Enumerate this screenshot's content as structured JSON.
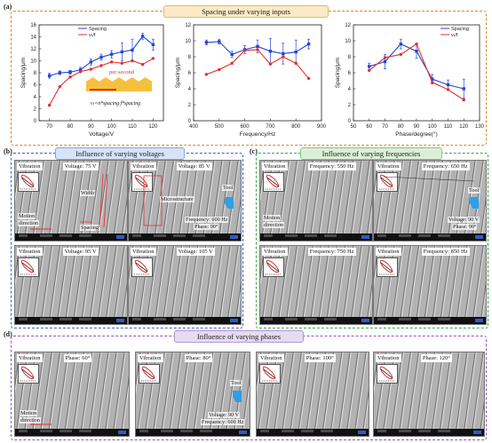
{
  "panel_a": {
    "label": "(a)",
    "title": "Spacing under varying inputs",
    "colors": {
      "border": "#d18a2e",
      "pill_bg": "#fbe9c6",
      "red": "#e23030",
      "blue": "#2347d6"
    },
    "annotations": {
      "per_second": "per second",
      "formula": "vₜ=n*spacing·f*spacing",
      "n_labels": [
        "1",
        "2",
        "...",
        "n-1",
        "n"
      ]
    }
  },
  "chart_data": [
    {
      "type": "line",
      "xlabel": "Voltage/V",
      "ylabel": "Spacing/μm",
      "xlim": [
        65,
        125
      ],
      "ylim": [
        0,
        16
      ],
      "xticks": [
        70,
        80,
        90,
        100,
        110,
        120
      ],
      "yticks": [
        0,
        2,
        4,
        6,
        8,
        10,
        12,
        14,
        16
      ],
      "legend": [
        "Spacing",
        "vₜ/f"
      ],
      "series": [
        {
          "name": "Spacing",
          "color": "#2347d6",
          "x": [
            70,
            75,
            80,
            85,
            90,
            95,
            100,
            105,
            110,
            115,
            120
          ],
          "y": [
            7.5,
            8.0,
            8.1,
            8.5,
            9.8,
            10.6,
            11.1,
            11.5,
            11.8,
            14.1,
            12.7
          ],
          "err": [
            0.4,
            0.3,
            0.3,
            0.4,
            0.5,
            0.5,
            0.6,
            1.5,
            1.8,
            0.5,
            0.9
          ]
        },
        {
          "name": "vₜ/f",
          "color": "#e23030",
          "x": [
            70,
            75,
            80,
            85,
            90,
            95,
            100,
            105,
            110,
            115,
            120
          ],
          "y": [
            2.6,
            5.7,
            7.3,
            8.2,
            8.6,
            9.2,
            9.8,
            9.6,
            10.0,
            9.4,
            10.4
          ]
        }
      ]
    },
    {
      "type": "line",
      "xlabel": "Frequency/Hz",
      "ylabel": "Spacing/μm",
      "xlim": [
        400,
        900
      ],
      "ylim": [
        0,
        12
      ],
      "xticks": [
        400,
        500,
        600,
        700,
        800,
        900
      ],
      "yticks": [
        0,
        2,
        4,
        6,
        8,
        10,
        12
      ],
      "series": [
        {
          "name": "Spacing",
          "color": "#2347d6",
          "x": [
            450,
            500,
            550,
            600,
            650,
            700,
            750,
            800,
            850
          ],
          "y": [
            9.8,
            9.9,
            8.3,
            8.9,
            9.3,
            8.7,
            8.4,
            8.6,
            9.6
          ],
          "err": [
            0.3,
            0.3,
            0.4,
            0.5,
            0.8,
            1.6,
            1.3,
            1.5,
            0.6
          ]
        },
        {
          "name": "vₜ/f",
          "color": "#e23030",
          "x": [
            450,
            500,
            550,
            600,
            650,
            700,
            750,
            800,
            850
          ],
          "y": [
            5.8,
            6.4,
            7.2,
            8.8,
            8.9,
            7.1,
            8.0,
            7.2,
            5.3
          ]
        }
      ]
    },
    {
      "type": "line",
      "xlabel": "Phase/degree(°)",
      "ylabel": "Spacing/μm",
      "xlim": [
        50,
        130
      ],
      "ylim": [
        0,
        12
      ],
      "xticks": [
        50,
        60,
        70,
        80,
        90,
        100,
        110,
        120,
        130
      ],
      "yticks": [
        0,
        2,
        4,
        6,
        8,
        10,
        12
      ],
      "legend": [
        "Spacing",
        "vₜ/f"
      ],
      "series": [
        {
          "name": "Spacing",
          "color": "#2347d6",
          "x": [
            60,
            70,
            80,
            90,
            100,
            110,
            120
          ],
          "y": [
            6.8,
            7.4,
            9.6,
            8.7,
            5.2,
            4.5,
            4.0
          ],
          "err": [
            0.4,
            0.9,
            0.6,
            0.9,
            0.6,
            0.6,
            1.2
          ]
        },
        {
          "name": "vₜ/f",
          "color": "#e23030",
          "x": [
            60,
            70,
            80,
            90,
            100,
            110,
            120
          ],
          "y": [
            6.3,
            7.9,
            8.3,
            9.6,
            4.8,
            3.9,
            2.6
          ]
        }
      ]
    }
  ],
  "panel_b": {
    "label": "(b)",
    "title": "Influence of varying voltages",
    "colors": {
      "border": "#3b66c4",
      "pill_bg": "#d7e3f7"
    },
    "images": [
      {
        "vibration": "Vibration",
        "param": "Voltage: 75 V",
        "extra": [
          "Width",
          "Motion",
          "direction",
          "Spacing"
        ]
      },
      {
        "vibration": "Vibration",
        "param": "Voltage: 85 V",
        "extra": [
          "Microstructure",
          "Tool",
          "Frequency: 600 Hz",
          "Phase: 90°"
        ]
      },
      {
        "vibration": "Vibration",
        "param": "Voltage: 95 V"
      },
      {
        "vibration": "Vibration",
        "param": "Voltage: 105 V"
      }
    ]
  },
  "panel_c": {
    "label": "(c)",
    "title": "Influence of varying frequencies",
    "colors": {
      "border": "#37a845",
      "pill_bg": "#dcefd6"
    },
    "images": [
      {
        "vibration": "Vibration",
        "param": "Frequency: 550 Hz",
        "extra": [
          "Motion",
          "direction"
        ]
      },
      {
        "vibration": "Vibration",
        "param": "Frequency: 650 Hz",
        "extra": [
          "Tool",
          "Voltage: 90 V",
          "Phase: 90°"
        ]
      },
      {
        "vibration": "Vibration",
        "param": "Frequency: 750 Hz"
      },
      {
        "vibration": "Vibration",
        "param": "Frequency: 850 Hz"
      }
    ]
  },
  "panel_d": {
    "label": "(d)",
    "title": "Influence of varying phases",
    "colors": {
      "border": "#8d57b8",
      "pill_bg": "#e6dbf1"
    },
    "images": [
      {
        "vibration": "Vibration",
        "param": "Phase: 60°",
        "extra": [
          "Motion",
          "direction"
        ]
      },
      {
        "vibration": "Vibration",
        "param": "Phase: 80°",
        "extra": [
          "Tool",
          "Voltage: 90 V",
          "Frequency: 600 Hz"
        ]
      },
      {
        "vibration": "Vibration",
        "param": "Phase: 100°"
      },
      {
        "vibration": "Vibration",
        "param": "Phase: 120°"
      }
    ]
  }
}
